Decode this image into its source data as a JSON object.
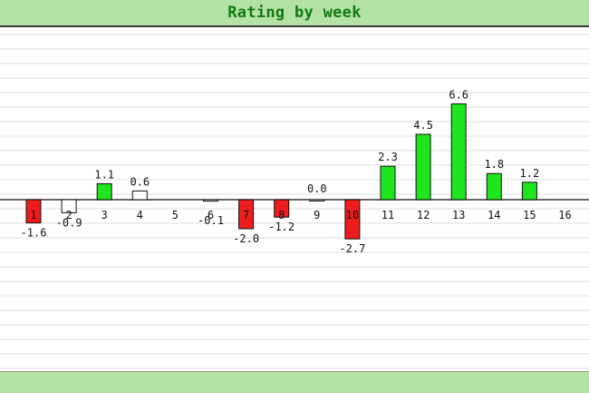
{
  "chart_data": {
    "type": "bar",
    "title": "Rating by week",
    "xlabel": "",
    "ylabel": "",
    "ylim": [
      -7.4,
      7.4
    ],
    "grid": true,
    "categories": [
      "1",
      "2",
      "3",
      "4",
      "5",
      "6",
      "7",
      "8",
      "9",
      "10",
      "11",
      "12",
      "13",
      "14",
      "15",
      "16"
    ],
    "values": [
      -1.6,
      -0.9,
      1.1,
      0.6,
      null,
      -0.1,
      -2.0,
      -1.2,
      0.0,
      -2.7,
      2.3,
      4.5,
      6.6,
      1.8,
      1.2,
      null
    ],
    "value_labels": [
      "-1.6",
      "-0.9",
      "1.1",
      "0.6",
      "",
      "-0.1",
      "-2.0",
      "-1.2",
      "0.0",
      "-2.7",
      "2.3",
      "4.5",
      "6.6",
      "1.8",
      "1.2",
      ""
    ],
    "bar_colors": [
      "#ee1c1c",
      "#ffffff",
      "#1ee51e",
      "#ffffff",
      null,
      "#ffffff",
      "#ee1c1c",
      "#ee1c1c",
      "#ffffff",
      "#ee1c1c",
      "#1ee51e",
      "#1ee51e",
      "#1ee51e",
      "#1ee51e",
      "#1ee51e",
      null
    ]
  },
  "colors": {
    "header_bg": "#b4e1a4",
    "title_text": "#107a10",
    "positive": "#1ee51e",
    "negative": "#ee1c1c",
    "neutral": "#ffffff",
    "grid": "#dcdcdc"
  }
}
